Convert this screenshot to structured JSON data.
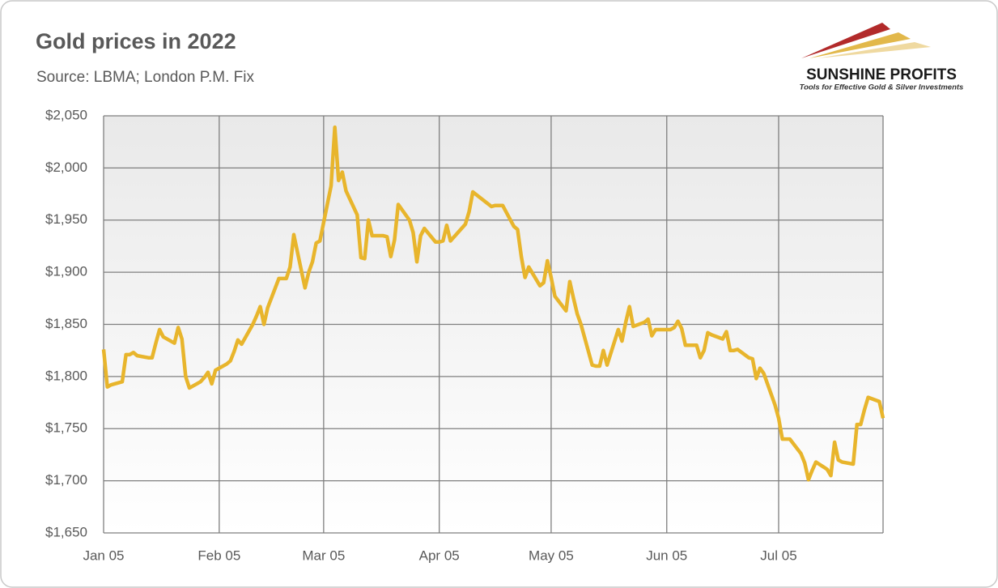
{
  "chart_data": {
    "type": "line",
    "title": "Gold prices in 2022",
    "subtitle": "Source: LBMA; London P.M. Fix",
    "logo": {
      "name": "SUNSHINE PROFITS",
      "tagline": "Tools for Effective Gold & Silver Investments"
    },
    "grid": true,
    "xlim": [
      "2022-01-05",
      "2022-08-02"
    ],
    "xticks": [
      {
        "value": "2022-01-05",
        "label": "Jan 05"
      },
      {
        "value": "2022-02-05",
        "label": "Feb 05"
      },
      {
        "value": "2022-03-05",
        "label": "Mar 05"
      },
      {
        "value": "2022-04-05",
        "label": "Apr 05"
      },
      {
        "value": "2022-05-05",
        "label": "May 05"
      },
      {
        "value": "2022-06-05",
        "label": "Jun 05"
      },
      {
        "value": "2022-07-05",
        "label": "Jul 05"
      }
    ],
    "ylim": [
      1650,
      2050
    ],
    "yticks": [
      {
        "value": 1650,
        "label": "$1,650"
      },
      {
        "value": 1700,
        "label": "$1,700"
      },
      {
        "value": 1750,
        "label": "$1,750"
      },
      {
        "value": 1800,
        "label": "$1,800"
      },
      {
        "value": 1850,
        "label": "$1,850"
      },
      {
        "value": 1900,
        "label": "$1,900"
      },
      {
        "value": 1950,
        "label": "$1,950"
      },
      {
        "value": 2000,
        "label": "$2,000"
      },
      {
        "value": 2050,
        "label": "$2,050"
      }
    ],
    "x": [
      "2022-01-05",
      "2022-01-06",
      "2022-01-07",
      "2022-01-10",
      "2022-01-11",
      "2022-01-12",
      "2022-01-13",
      "2022-01-14",
      "2022-01-17",
      "2022-01-18",
      "2022-01-19",
      "2022-01-20",
      "2022-01-21",
      "2022-01-24",
      "2022-01-25",
      "2022-01-26",
      "2022-01-27",
      "2022-01-28",
      "2022-01-31",
      "2022-02-01",
      "2022-02-02",
      "2022-02-03",
      "2022-02-04",
      "2022-02-07",
      "2022-02-08",
      "2022-02-09",
      "2022-02-10",
      "2022-02-11",
      "2022-02-14",
      "2022-02-15",
      "2022-02-16",
      "2022-02-17",
      "2022-02-18",
      "2022-02-21",
      "2022-02-22",
      "2022-02-23",
      "2022-02-24",
      "2022-02-25",
      "2022-02-28",
      "2022-03-01",
      "2022-03-02",
      "2022-03-03",
      "2022-03-04",
      "2022-03-07",
      "2022-03-08",
      "2022-03-09",
      "2022-03-10",
      "2022-03-11",
      "2022-03-14",
      "2022-03-15",
      "2022-03-16",
      "2022-03-17",
      "2022-03-18",
      "2022-03-21",
      "2022-03-22",
      "2022-03-23",
      "2022-03-24",
      "2022-03-25",
      "2022-03-28",
      "2022-03-29",
      "2022-03-30",
      "2022-03-31",
      "2022-04-01",
      "2022-04-04",
      "2022-04-05",
      "2022-04-06",
      "2022-04-07",
      "2022-04-08",
      "2022-04-11",
      "2022-04-12",
      "2022-04-13",
      "2022-04-14",
      "2022-04-19",
      "2022-04-20",
      "2022-04-21",
      "2022-04-22",
      "2022-04-25",
      "2022-04-26",
      "2022-04-27",
      "2022-04-28",
      "2022-04-29",
      "2022-05-02",
      "2022-05-03",
      "2022-05-04",
      "2022-05-05",
      "2022-05-06",
      "2022-05-09",
      "2022-05-10",
      "2022-05-11",
      "2022-05-12",
      "2022-05-13",
      "2022-05-16",
      "2022-05-17",
      "2022-05-18",
      "2022-05-19",
      "2022-05-20",
      "2022-05-23",
      "2022-05-24",
      "2022-05-25",
      "2022-05-26",
      "2022-05-27",
      "2022-05-30",
      "2022-05-31",
      "2022-06-01",
      "2022-06-02",
      "2022-06-06",
      "2022-06-07",
      "2022-06-08",
      "2022-06-09",
      "2022-06-10",
      "2022-06-13",
      "2022-06-14",
      "2022-06-15",
      "2022-06-16",
      "2022-06-17",
      "2022-06-20",
      "2022-06-21",
      "2022-06-22",
      "2022-06-23",
      "2022-06-24",
      "2022-06-27",
      "2022-06-28",
      "2022-06-29",
      "2022-06-30",
      "2022-07-01",
      "2022-07-04",
      "2022-07-05",
      "2022-07-06",
      "2022-07-07",
      "2022-07-08",
      "2022-07-11",
      "2022-07-12",
      "2022-07-13",
      "2022-07-14",
      "2022-07-15",
      "2022-07-18",
      "2022-07-19",
      "2022-07-20",
      "2022-07-21",
      "2022-07-22",
      "2022-07-25",
      "2022-07-26",
      "2022-07-27",
      "2022-07-28",
      "2022-07-29",
      "2022-08-01",
      "2022-08-02"
    ],
    "series": [
      {
        "color": "#e8b52c",
        "values": [
          1826,
          1790,
          1792,
          1795,
          1821,
          1821,
          1823,
          1820,
          1818,
          1818,
          1832,
          1845,
          1838,
          1832,
          1847,
          1836,
          1800,
          1789,
          1795,
          1799,
          1804,
          1793,
          1806,
          1812,
          1815,
          1824,
          1835,
          1831,
          1850,
          1858,
          1867,
          1850,
          1866,
          1894,
          1894,
          1894,
          1905,
          1936,
          1885,
          1900,
          1910,
          1928,
          1930,
          1983,
          2039,
          1988,
          1996,
          1978,
          1955,
          1914,
          1913,
          1950,
          1935,
          1935,
          1934,
          1915,
          1931,
          1965,
          1950,
          1938,
          1910,
          1935,
          1942,
          1929,
          1929,
          1930,
          1945,
          1930,
          1942,
          1946,
          1958,
          1977,
          1963,
          1964,
          1964,
          1964,
          1944,
          1941,
          1915,
          1895,
          1905,
          1887,
          1890,
          1911,
          1895,
          1877,
          1863,
          1891,
          1875,
          1860,
          1850,
          1811,
          1810,
          1810,
          1825,
          1811,
          1845,
          1834,
          1852,
          1867,
          1848,
          1852,
          1855,
          1839,
          1845,
          1845,
          1847,
          1853,
          1846,
          1830,
          1830,
          1818,
          1825,
          1842,
          1840,
          1836,
          1843,
          1825,
          1825,
          1826,
          1818,
          1817,
          1798,
          1808,
          1803,
          1773,
          1760,
          1740,
          1740,
          1740,
          1726,
          1717,
          1701,
          1710,
          1718,
          1711,
          1705,
          1737,
          1720,
          1718,
          1716,
          1754,
          1754,
          1768,
          1780,
          1776,
          1760
        ]
      }
    ]
  }
}
